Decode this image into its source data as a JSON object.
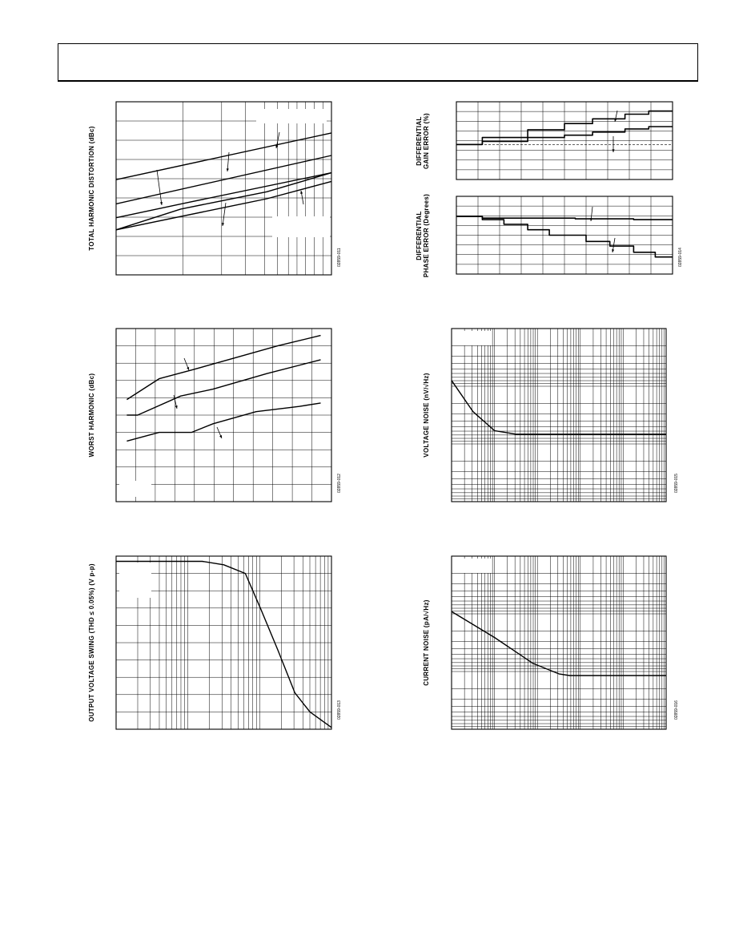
{
  "colors": {
    "ink": "#000000",
    "grid": "#000000",
    "background": "#ffffff"
  },
  "chart_data": [
    {
      "id": "thd",
      "type": "line",
      "ylabel": "TOTAL HARMONIC DISTORTION (dBc)",
      "figure_id": "02859-011",
      "x_scale": "log",
      "grid": true,
      "series": [
        {
          "values": [
            [
              0,
              0.45
            ],
            [
              1,
              0.18
            ]
          ]
        },
        {
          "values": [
            [
              0,
              0.59
            ],
            [
              1,
              0.31
            ]
          ]
        },
        {
          "values": [
            [
              0,
              0.67
            ],
            [
              0.34,
              0.58
            ],
            [
              1,
              0.41
            ]
          ]
        },
        {
          "values": [
            [
              0,
              0.74
            ],
            [
              0.7,
              0.56
            ],
            [
              1,
              0.46
            ]
          ]
        },
        {
          "values": [
            [
              0,
              0.74
            ],
            [
              0.3,
              0.62
            ],
            [
              0.7,
              0.52
            ],
            [
              1,
              0.41
            ]
          ]
        }
      ]
    },
    {
      "id": "diff_gain",
      "type": "line",
      "ylabel": "DIFFERENTIAL GAIN ERROR (%)",
      "grid": true,
      "series": [
        {
          "values": [
            [
              0,
              0.55
            ],
            [
              0.12,
              0.55
            ],
            [
              0.12,
              0.46
            ],
            [
              0.33,
              0.46
            ],
            [
              0.33,
              0.36
            ],
            [
              0.5,
              0.36
            ],
            [
              0.5,
              0.28
            ],
            [
              0.63,
              0.28
            ],
            [
              0.63,
              0.22
            ],
            [
              0.78,
              0.22
            ],
            [
              0.78,
              0.16
            ],
            [
              0.89,
              0.16
            ],
            [
              0.89,
              0.12
            ],
            [
              1,
              0.12
            ]
          ]
        },
        {
          "values": [
            [
              0,
              0.55
            ],
            [
              0.12,
              0.55
            ],
            [
              0.12,
              0.51
            ],
            [
              0.33,
              0.51
            ],
            [
              0.33,
              0.46
            ],
            [
              0.5,
              0.46
            ],
            [
              0.5,
              0.43
            ],
            [
              0.63,
              0.43
            ],
            [
              0.63,
              0.39
            ],
            [
              0.78,
              0.39
            ],
            [
              0.78,
              0.35
            ],
            [
              0.89,
              0.35
            ],
            [
              0.89,
              0.32
            ],
            [
              1,
              0.32
            ]
          ]
        }
      ]
    },
    {
      "id": "diff_phase",
      "type": "line",
      "ylabel": "DIFFERENTIAL PHASE ERROR (Degrees)",
      "figure_id": "02859-014",
      "grid": true,
      "series": [
        {
          "values": [
            [
              0,
              0.26
            ],
            [
              0.12,
              0.26
            ],
            [
              0.12,
              0.3
            ],
            [
              0.22,
              0.3
            ],
            [
              0.22,
              0.36
            ],
            [
              0.33,
              0.36
            ],
            [
              0.33,
              0.43
            ],
            [
              0.43,
              0.43
            ],
            [
              0.43,
              0.5
            ],
            [
              0.6,
              0.5
            ],
            [
              0.6,
              0.58
            ],
            [
              0.71,
              0.58
            ],
            [
              0.71,
              0.64
            ],
            [
              0.82,
              0.64
            ],
            [
              0.82,
              0.72
            ],
            [
              0.92,
              0.72
            ],
            [
              0.92,
              0.78
            ],
            [
              1,
              0.78
            ]
          ]
        },
        {
          "values": [
            [
              0,
              0.26
            ],
            [
              0.12,
              0.26
            ],
            [
              0.12,
              0.28
            ],
            [
              0.55,
              0.28
            ],
            [
              0.55,
              0.29
            ],
            [
              0.82,
              0.29
            ],
            [
              0.82,
              0.3
            ],
            [
              1,
              0.3
            ]
          ]
        }
      ]
    },
    {
      "id": "worst_harmonic",
      "type": "line",
      "ylabel": "WORST HARMONIC (dBc)",
      "figure_id": "02859-012",
      "grid": true,
      "series": [
        {
          "values": [
            [
              0.05,
              0.41
            ],
            [
              0.2,
              0.29
            ],
            [
              0.35,
              0.24
            ],
            [
              0.55,
              0.17
            ],
            [
              0.75,
              0.1
            ],
            [
              0.95,
              0.04
            ]
          ]
        },
        {
          "values": [
            [
              0.05,
              0.5
            ],
            [
              0.1,
              0.5
            ],
            [
              0.3,
              0.39
            ],
            [
              0.45,
              0.35
            ],
            [
              0.7,
              0.26
            ],
            [
              0.95,
              0.18
            ]
          ]
        },
        {
          "values": [
            [
              0.05,
              0.65
            ],
            [
              0.2,
              0.6
            ],
            [
              0.35,
              0.6
            ],
            [
              0.45,
              0.55
            ],
            [
              0.65,
              0.48
            ],
            [
              0.85,
              0.45
            ],
            [
              0.95,
              0.43
            ]
          ]
        }
      ]
    },
    {
      "id": "voltage_noise",
      "type": "line",
      "ylabel": "VOLTAGE NOISE (nV/√Hz)",
      "figure_id": "02859-015",
      "x_scale": "log",
      "y_scale": "log",
      "grid": true,
      "series": [
        {
          "values": [
            [
              0,
              0.3
            ],
            [
              0.1,
              0.48
            ],
            [
              0.2,
              0.59
            ],
            [
              0.3,
              0.61
            ],
            [
              0.42,
              0.61
            ],
            [
              1,
              0.61
            ]
          ]
        }
      ]
    },
    {
      "id": "output_swing",
      "type": "line",
      "ylabel": "OUTPUT VOLTAGE SWING (THD ≤ 0.05%) (V p-p)",
      "figure_id": "02859-013",
      "x_scale": "log",
      "grid": true,
      "series": [
        {
          "values": [
            [
              0,
              0.03
            ],
            [
              0.4,
              0.03
            ],
            [
              0.5,
              0.05
            ],
            [
              0.6,
              0.1
            ],
            [
              0.67,
              0.3
            ],
            [
              0.75,
              0.54
            ],
            [
              0.83,
              0.79
            ],
            [
              0.9,
              0.9
            ],
            [
              1,
              0.99
            ]
          ]
        }
      ]
    },
    {
      "id": "current_noise",
      "type": "line",
      "ylabel": "CURRENT NOISE (pA/√Hz)",
      "figure_id": "02859-016",
      "x_scale": "log",
      "y_scale": "log",
      "grid": true,
      "series": [
        {
          "values": [
            [
              0,
              0.32
            ],
            [
              0.2,
              0.47
            ],
            [
              0.38,
              0.62
            ],
            [
              0.5,
              0.68
            ],
            [
              0.55,
              0.69
            ],
            [
              1,
              0.69
            ]
          ]
        }
      ]
    }
  ]
}
